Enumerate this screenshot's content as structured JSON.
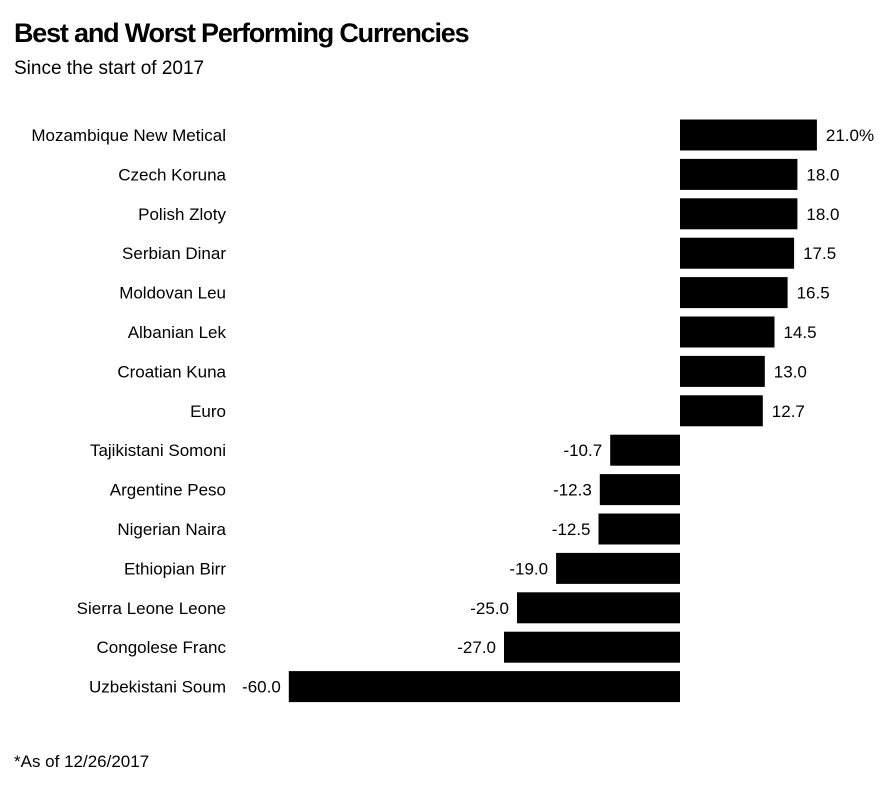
{
  "title": "Best and Worst Performing Currencies",
  "subtitle": "Since the start of 2017",
  "footnote": "*As of 12/26/2017",
  "colors": {
    "bar": "#000000",
    "background": "#ffffff",
    "text": "#000000"
  },
  "chart_data": {
    "type": "bar",
    "orientation": "horizontal",
    "title": "Best and Worst Performing Currencies",
    "subtitle": "Since the start of 2017",
    "categories": [
      "Mozambique New Metical",
      "Czech Koruna",
      "Polish Zloty",
      "Serbian Dinar",
      "Moldovan Leu",
      "Albanian Lek",
      "Croatian Kuna",
      "Euro",
      "Tajikistani Somoni",
      "Argentine Peso",
      "Nigerian Naira",
      "Ethiopian Birr",
      "Sierra Leone Leone",
      "Congolese Franc",
      "Uzbekistani Soum"
    ],
    "values": [
      21.0,
      18.0,
      18.0,
      17.5,
      16.5,
      14.5,
      13.0,
      12.7,
      -10.7,
      -12.3,
      -12.5,
      -19.0,
      -25.0,
      -27.0,
      -60.0
    ],
    "value_labels": [
      "21.0%",
      "18.0",
      "18.0",
      "17.5",
      "16.5",
      "14.5",
      "13.0",
      "12.7",
      "-10.7",
      "-12.3",
      "-12.5",
      "-19.0",
      "-25.0",
      "-27.0",
      "-60.0"
    ],
    "xlim": [
      -60,
      21
    ],
    "grid": false,
    "legend": "none",
    "xlabel": "",
    "ylabel": ""
  }
}
